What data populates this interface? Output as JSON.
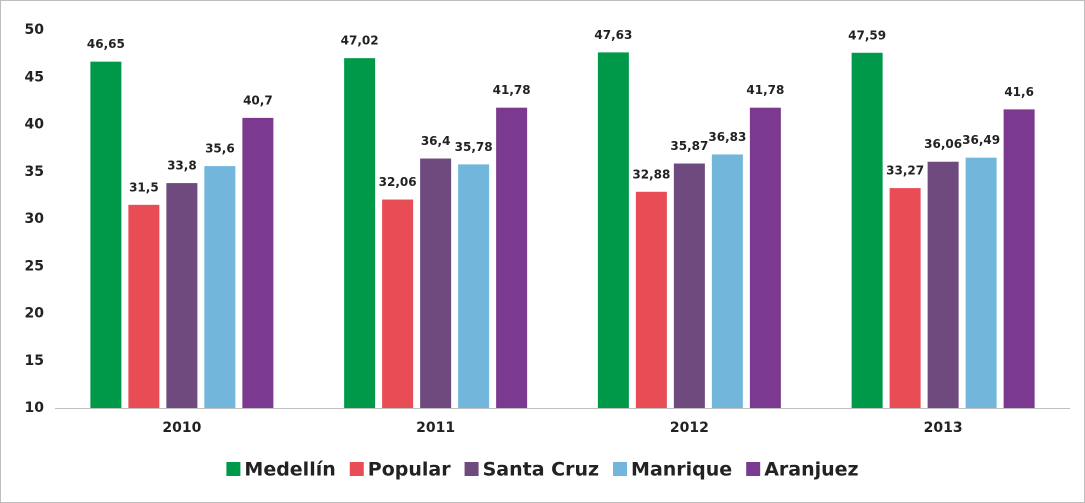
{
  "chart_data": {
    "type": "bar",
    "categories": [
      "2010",
      "2011",
      "2012",
      "2013"
    ],
    "series": [
      {
        "name": "Medellín",
        "color": "#00994a",
        "values": [
          46.65,
          47.02,
          47.63,
          47.59
        ],
        "value_labels": [
          "46,65",
          "47,02",
          "47,63",
          "47,59"
        ]
      },
      {
        "name": "Popular",
        "color": "#e84c55",
        "values": [
          31.5,
          32.06,
          32.88,
          33.27
        ],
        "value_labels": [
          "31,5",
          "32,06",
          "32,88",
          "33,27"
        ]
      },
      {
        "name": "Santa Cruz",
        "color": "#6f4a7e",
        "values": [
          33.8,
          36.4,
          35.87,
          36.06
        ],
        "value_labels": [
          "33,8",
          "36,4",
          "35,87",
          "36,06"
        ]
      },
      {
        "name": "Manrique",
        "color": "#72b6dc",
        "values": [
          35.6,
          35.78,
          36.83,
          36.49
        ],
        "value_labels": [
          "35,6",
          "35,78",
          "36,83",
          "36,49"
        ]
      },
      {
        "name": "Aranjuez",
        "color": "#7b3a8f",
        "values": [
          40.7,
          41.78,
          41.78,
          41.6
        ],
        "value_labels": [
          "40,7",
          "41,78",
          "41,78",
          "41,6"
        ]
      }
    ],
    "ylim": [
      10,
      50
    ],
    "yticks": [
      10,
      15,
      20,
      25,
      30,
      35,
      40,
      45,
      50
    ],
    "grid": false,
    "legend": "bottom"
  }
}
